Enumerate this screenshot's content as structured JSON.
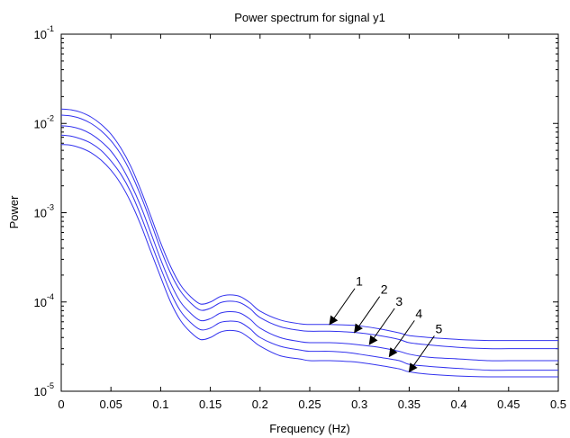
{
  "chart_data": {
    "type": "line",
    "title": "Power spectrum for signal y1",
    "xlabel": "Frequency (Hz)",
    "ylabel": "Power",
    "xlim": [
      0,
      0.5
    ],
    "ylim": [
      1e-05,
      0.1
    ],
    "y_scale": "log",
    "x_ticks": [
      "0",
      "0.05",
      "0.1",
      "0.15",
      "0.2",
      "0.25",
      "0.3",
      "0.35",
      "0.4",
      "0.45",
      "0.5"
    ],
    "y_ticks": [
      {
        "base": "10",
        "exp": "-5"
      },
      {
        "base": "10",
        "exp": "-4"
      },
      {
        "base": "10",
        "exp": "-3"
      },
      {
        "base": "10",
        "exp": "-2"
      },
      {
        "base": "10",
        "exp": "-1"
      }
    ],
    "line_color": "#3333ee",
    "x": [
      0,
      0.01,
      0.02,
      0.03,
      0.04,
      0.05,
      0.06,
      0.07,
      0.08,
      0.09,
      0.1,
      0.11,
      0.12,
      0.13,
      0.14,
      0.15,
      0.16,
      0.17,
      0.18,
      0.19,
      0.2,
      0.22,
      0.24,
      0.25,
      0.27,
      0.29,
      0.3,
      0.32,
      0.34,
      0.35,
      0.37,
      0.4,
      0.43,
      0.45,
      0.48,
      0.5
    ],
    "series": [
      {
        "values": [
          0.0145,
          0.0142,
          0.0133,
          0.0118,
          0.0098,
          0.0076,
          0.0053,
          0.0033,
          0.0018,
          0.00092,
          0.00046,
          0.00025,
          0.000155,
          0.000115,
          9.5e-05,
          0.0001,
          0.000115,
          0.00012,
          0.000115,
          9.8e-05,
          7.9e-05,
          6.3e-05,
          5.7e-05,
          5.6e-05,
          5.6e-05,
          5.5e-05,
          5.4e-05,
          5e-05,
          4.5e-05,
          4.2e-05,
          4e-05,
          3.8e-05,
          3.7e-05,
          3.7e-05,
          3.7e-05,
          3.7e-05
        ]
      },
      {
        "values": [
          0.0124,
          0.0121,
          0.0113,
          0.01,
          0.0083,
          0.0064,
          0.0045,
          0.0028,
          0.00155,
          0.00079,
          0.00039,
          0.00021,
          0.000132,
          9.8e-05,
          8.1e-05,
          8.5e-05,
          9.8e-05,
          0.000102,
          9.8e-05,
          8.4e-05,
          6.7e-05,
          5.3e-05,
          4.8e-05,
          4.7e-05,
          4.7e-05,
          4.6e-05,
          4.5e-05,
          4.2e-05,
          3.8e-05,
          3.5e-05,
          3.3e-05,
          3.1e-05,
          3e-05,
          3e-05,
          3e-05,
          3e-05
        ]
      },
      {
        "values": [
          0.0094,
          0.0092,
          0.0086,
          0.0076,
          0.0063,
          0.0049,
          0.0034,
          0.0021,
          0.00118,
          0.0006,
          0.0003,
          0.000162,
          0.0001,
          7.5e-05,
          6.2e-05,
          6.5e-05,
          7.5e-05,
          7.8e-05,
          7.5e-05,
          6.4e-05,
          5.1e-05,
          4e-05,
          3.6e-05,
          3.5e-05,
          3.5e-05,
          3.4e-05,
          3.3e-05,
          3.1e-05,
          2.8e-05,
          2.6e-05,
          2.4e-05,
          2.3e-05,
          2.2e-05,
          2.2e-05,
          2.2e-05,
          2.2e-05
        ]
      },
      {
        "values": [
          0.0074,
          0.0072,
          0.0067,
          0.006,
          0.005,
          0.0038,
          0.0027,
          0.0017,
          0.00093,
          0.00047,
          0.00024,
          0.000128,
          7.9e-05,
          5.9e-05,
          4.9e-05,
          5.1e-05,
          5.9e-05,
          6.1e-05,
          5.9e-05,
          5e-05,
          4e-05,
          3.2e-05,
          2.9e-05,
          2.8e-05,
          2.8e-05,
          2.7e-05,
          2.6e-05,
          2.4e-05,
          2.2e-05,
          2e-05,
          1.9e-05,
          1.8e-05,
          1.72e-05,
          1.72e-05,
          1.72e-05,
          1.72e-05
        ]
      },
      {
        "values": [
          0.0058,
          0.0057,
          0.0053,
          0.0047,
          0.0039,
          0.003,
          0.0021,
          0.00131,
          0.00073,
          0.00037,
          0.00019,
          0.0001,
          6.2e-05,
          4.6e-05,
          3.8e-05,
          4e-05,
          4.6e-05,
          4.8e-05,
          4.6e-05,
          3.9e-05,
          3.2e-05,
          2.5e-05,
          2.3e-05,
          2.2e-05,
          2.2e-05,
          2.15e-05,
          2.1e-05,
          1.95e-05,
          1.78e-05,
          1.65e-05,
          1.55e-05,
          1.48e-05,
          1.45e-05,
          1.45e-05,
          1.45e-05,
          1.45e-05
        ]
      }
    ],
    "annotations": [
      {
        "text": "1",
        "x": 0.27,
        "y": 5.6e-05
      },
      {
        "text": "2",
        "x": 0.295,
        "y": 4.55e-05
      },
      {
        "text": "3",
        "x": 0.31,
        "y": 3.35e-05
      },
      {
        "text": "4",
        "x": 0.33,
        "y": 2.45e-05
      },
      {
        "text": "5",
        "x": 0.35,
        "y": 1.65e-05
      }
    ]
  }
}
